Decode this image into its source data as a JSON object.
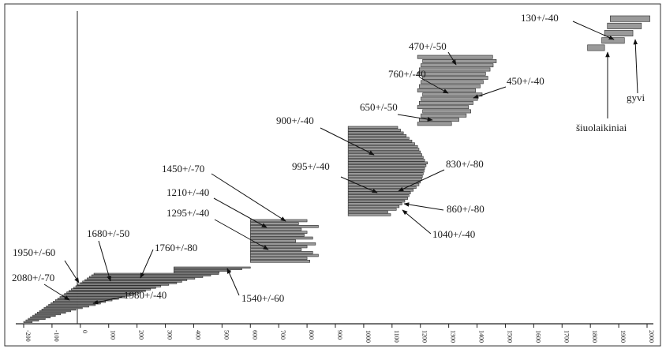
{
  "chart_data": {
    "type": "bar",
    "orientation": "horizontal-range",
    "title": "",
    "xlabel": "",
    "ylabel": "",
    "xlim": [
      -200,
      2000
    ],
    "x_ticks": [
      -200,
      -100,
      0,
      100,
      200,
      300,
      400,
      500,
      600,
      700,
      800,
      900,
      1000,
      1100,
      1200,
      1300,
      1400,
      1500,
      1600,
      1700,
      1800,
      1900,
      2000
    ],
    "grid": false,
    "clusters": [
      {
        "name": "c1",
        "start": -200,
        "lengths": [
          30,
          45,
          60,
          70,
          80,
          90,
          100,
          110,
          120,
          135,
          150,
          165,
          175,
          185,
          200,
          215,
          230,
          240,
          250,
          260,
          270,
          280,
          290,
          300,
          320,
          340,
          350,
          360,
          380,
          400,
          420,
          440
        ]
      },
      {
        "name": "c2",
        "start": 330,
        "lengths": [
          160,
          200,
          240,
          270
        ]
      },
      {
        "name": "c3",
        "start": 600,
        "lengths": [
          210,
          200,
          240,
          220,
          180,
          200,
          230,
          160,
          220,
          190,
          200,
          180,
          240,
          170,
          200
        ]
      },
      {
        "name": "c4",
        "start": 945,
        "lengths": [
          150,
          140,
          170,
          180,
          190,
          200,
          210,
          215,
          220,
          230,
          240,
          250,
          255,
          260,
          262,
          265,
          268,
          270,
          275,
          280,
          270,
          265,
          260,
          255,
          250,
          245,
          235,
          225,
          215,
          205,
          195,
          185,
          175
        ]
      },
      {
        "name": "c5",
        "start": 1190,
        "lengths": [
          120,
          140,
          160,
          170,
          180,
          190,
          200,
          210,
          205,
          215,
          220,
          230,
          240,
          250,
          255,
          260,
          265
        ]
      },
      {
        "name": "c6",
        "start": 1830,
        "lengths": [
          60,
          80,
          100,
          120,
          140
        ]
      }
    ],
    "annotations": [
      {
        "text": "130+/-40",
        "value": 130
      },
      {
        "text": "470+/-50",
        "value": 470
      },
      {
        "text": "760+/-40",
        "value": 760
      },
      {
        "text": "450+/-40",
        "value": 450
      },
      {
        "text": "650+/-50",
        "value": 650
      },
      {
        "text": "900+/-40",
        "value": 900
      },
      {
        "text": "995+/-40",
        "value": 995
      },
      {
        "text": "830+/-80",
        "value": 830
      },
      {
        "text": "860+/-80",
        "value": 860
      },
      {
        "text": "1040+/-40",
        "value": 1040
      },
      {
        "text": "1450+/-70",
        "value": 1450
      },
      {
        "text": "1210+/-40",
        "value": 1210
      },
      {
        "text": "1295+/-40",
        "value": 1295
      },
      {
        "text": "1680+/-50",
        "value": 1680
      },
      {
        "text": "1760+/-80",
        "value": 1760
      },
      {
        "text": "1950+/-60",
        "value": 1950
      },
      {
        "text": "2080+/-70",
        "value": 2080
      },
      {
        "text": "1980+/-40",
        "value": 1980
      },
      {
        "text": "1540+/-60",
        "value": 1540
      },
      {
        "text": "gyvi",
        "value": null
      },
      {
        "text": "šiuolaikiniai",
        "value": null
      }
    ]
  }
}
